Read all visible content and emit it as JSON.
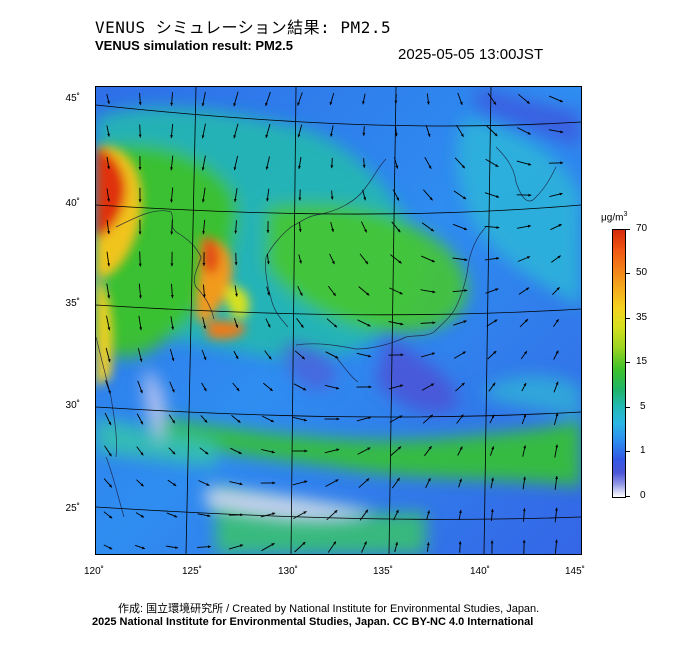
{
  "header": {
    "title_ja": "VENUS シミュレーション結果: PM2.5",
    "title_en": "VENUS simulation result: PM2.5",
    "timestamp": "2025-05-05 13:00JST"
  },
  "map": {
    "lat_labels": [
      "45˚",
      "40˚",
      "35˚",
      "30˚",
      "25˚"
    ],
    "lon_labels": [
      "120˚",
      "125˚",
      "130˚",
      "135˚",
      "140˚",
      "145˚"
    ],
    "high_concentration_color": "#d62a0b",
    "sea_background_color": "#2e6ee8"
  },
  "colorbar": {
    "unit_base": "μg/m",
    "unit_sup": "3",
    "tick_labels": [
      "70",
      "50",
      "35",
      "15",
      "5",
      "1",
      "0"
    ]
  },
  "footer": {
    "credit_ja": "作成: 国立環境研究所 / Created by National Institute for Environmental Studies, Japan.",
    "copyright": "2025 National Institute for Environmental Studies, Japan. CC BY-NC 4.0 International"
  }
}
